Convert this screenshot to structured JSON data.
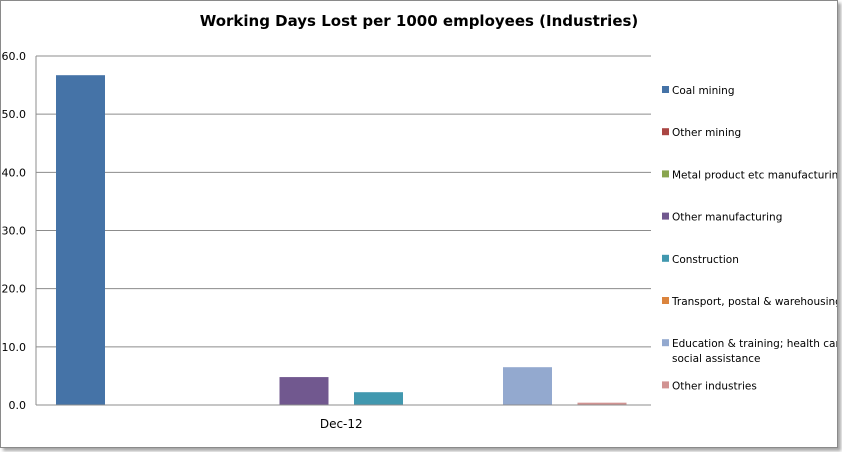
{
  "chart_data": {
    "type": "bar",
    "title": "Working Days Lost per 1000 employees (Industries)",
    "categories": [
      "Dec-12"
    ],
    "ylim": [
      0,
      60
    ],
    "yticks": [
      "0.0",
      "10.0",
      "20.0",
      "30.0",
      "40.0",
      "50.0",
      "60.0"
    ],
    "grid": true,
    "legend_position": "right",
    "series": [
      {
        "name": "Coal mining",
        "values": [
          56.7
        ],
        "color": "#4573A7"
      },
      {
        "name": "Other mining",
        "values": [
          0
        ],
        "color": "#AA4643"
      },
      {
        "name": "Metal product etc manufacturing",
        "values": [
          0
        ],
        "color": "#89A54E"
      },
      {
        "name": "Other manufacturing",
        "values": [
          4.8
        ],
        "color": "#71588F"
      },
      {
        "name": "Construction",
        "values": [
          2.2
        ],
        "color": "#4198AF"
      },
      {
        "name": "Transport, postal & warehousing",
        "values": [
          0
        ],
        "color": "#DB843D"
      },
      {
        "name": "Education & training; health care & social assistance",
        "values": [
          6.5
        ],
        "color": "#93A9CF"
      },
      {
        "name": "Other industries",
        "values": [
          0.4
        ],
        "color": "#D19392"
      }
    ]
  }
}
